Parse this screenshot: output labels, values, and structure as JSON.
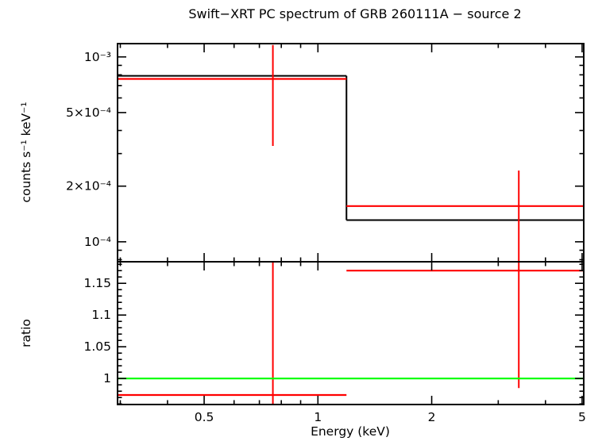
{
  "title": "Swift−XRT PC spectrum of GRB 260111A − source 2",
  "chart_data": {
    "type": "line",
    "title": "Swift−XRT PC spectrum of GRB 260111A − source 2",
    "xlabel": "Energy (keV)",
    "x_scale": "log",
    "x_range": [
      0.295,
      5.05
    ],
    "x_ticks": {
      "major": [
        {
          "v": 0.5,
          "label": "0.5"
        },
        {
          "v": 1,
          "label": "1"
        },
        {
          "v": 2,
          "label": "2"
        },
        {
          "v": 5,
          "label": "5"
        }
      ],
      "minor": [
        0.3,
        0.4,
        0.6,
        0.7,
        0.8,
        0.9,
        3,
        4
      ]
    },
    "colors": {
      "model": "#000000",
      "data": "#ff0000",
      "reference": "#00ff00",
      "axes": "#000000"
    },
    "panels": [
      {
        "name": "spectrum",
        "ylabel": "counts s⁻¹ keV⁻¹",
        "y_scale": "log",
        "y_range": [
          7.8e-05,
          0.00118
        ],
        "y_ticks": {
          "major": [
            {
              "v": 0.001,
              "label": "10⁻³"
            },
            {
              "v": 0.0005,
              "label": "5×10⁻⁴"
            },
            {
              "v": 0.0002,
              "label": "2×10⁻⁴"
            },
            {
              "v": 0.0001,
              "label": "10⁻⁴"
            }
          ]
        },
        "model_steps": [
          {
            "x0": 0.295,
            "x1": 1.19,
            "y": 0.00079
          },
          {
            "x0": 1.19,
            "x1": 5.05,
            "y": 0.000131
          }
        ],
        "data_points": [
          {
            "x": 0.76,
            "x0": 0.295,
            "x1": 1.19,
            "y": 0.00076,
            "y_lo": 0.00033,
            "y_hi": 0.00116
          },
          {
            "x": 3.4,
            "x0": 1.19,
            "x1": 5.05,
            "y": 0.000156,
            "y_lo": 7e-05,
            "y_hi": 0.000243
          }
        ]
      },
      {
        "name": "ratio",
        "ylabel": "ratio",
        "y_scale": "linear",
        "y_range": [
          0.959,
          1.184
        ],
        "y_ticks": {
          "major": [
            {
              "v": 1,
              "label": "1"
            },
            {
              "v": 1.05,
              "label": "1.05"
            },
            {
              "v": 1.1,
              "label": "1.1"
            },
            {
              "v": 1.15,
              "label": "1.15"
            }
          ],
          "minor_step": 0.01
        },
        "reference_line": {
          "y": 1.0
        },
        "data_points": [
          {
            "x": 0.76,
            "x0": 0.295,
            "x1": 1.19,
            "y": 0.974,
            "y_lo": 0.9,
            "y_hi": 1.3
          },
          {
            "x": 3.4,
            "x0": 1.19,
            "x1": 5.05,
            "y": 1.17,
            "y_lo": 0.985,
            "y_hi": 1.3
          }
        ]
      }
    ]
  }
}
